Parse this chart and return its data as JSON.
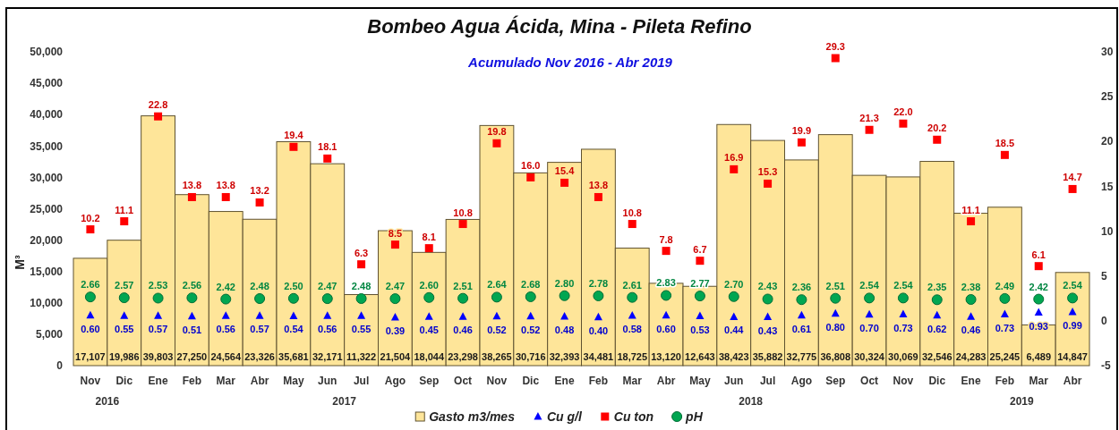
{
  "chart_data": {
    "type": "bar",
    "title": "Bombeo Agua Ácida, Mina - Pileta Refino",
    "subtitle": "Acumulado Nov 2016 - Abr 2019",
    "ylabel": "M³",
    "categories": [
      "Nov",
      "Dic",
      "Ene",
      "Feb",
      "Mar",
      "Abr",
      "May",
      "Jun",
      "Jul",
      "Ago",
      "Sep",
      "Oct",
      "Nov",
      "Dic",
      "Ene",
      "Feb",
      "Mar",
      "Abr",
      "May",
      "Jun",
      "Jul",
      "Ago",
      "Sep",
      "Oct",
      "Nov",
      "Dic",
      "Ene",
      "Feb",
      "Mar",
      "Abr"
    ],
    "series": [
      {
        "name": "Gasto m3/mes",
        "type": "bar",
        "color": "#fee599",
        "values": [
          17107,
          19986,
          39803,
          27250,
          24564,
          23326,
          35681,
          32171,
          11322,
          21504,
          18044,
          23298,
          38265,
          30716,
          32393,
          34481,
          18725,
          13120,
          12643,
          38423,
          35882,
          32775,
          36808,
          30324,
          30069,
          32546,
          24283,
          25245,
          6489,
          14847
        ],
        "value_labels": [
          "17,107",
          "19,986",
          "39,803",
          "27,250",
          "24,564",
          "23,326",
          "35,681",
          "32,171",
          "11,322",
          "21,504",
          "18,044",
          "23,298",
          "38,265",
          "30,716",
          "32,393",
          "34,481",
          "18,725",
          "13,120",
          "12,643",
          "38,423",
          "35,882",
          "32,775",
          "36,808",
          "30,324",
          "30,069",
          "32,546",
          "24,283",
          "25,245",
          "6,489",
          "14,847"
        ]
      },
      {
        "name": "Cu g/l",
        "type": "scatter",
        "axis": "y2",
        "marker": "triangle",
        "color": "#0000ff",
        "values": [
          0.6,
          0.55,
          0.57,
          0.51,
          0.56,
          0.57,
          0.54,
          0.56,
          0.55,
          0.39,
          0.45,
          0.46,
          0.52,
          0.52,
          0.48,
          0.4,
          0.58,
          0.6,
          0.53,
          0.44,
          0.43,
          0.61,
          0.8,
          0.7,
          0.73,
          0.62,
          0.46,
          0.73,
          0.93,
          0.99
        ],
        "value_labels": [
          "0.60",
          "0.55",
          "0.57",
          "0.51",
          "0.56",
          "0.57",
          "0.54",
          "0.56",
          "0.55",
          "0.39",
          "0.45",
          "0.46",
          "0.52",
          "0.52",
          "0.48",
          "0.40",
          "0.58",
          "0.60",
          "0.53",
          "0.44",
          "0.43",
          "0.61",
          "0.80",
          "0.70",
          "0.73",
          "0.62",
          "0.46",
          "0.73",
          "0.93",
          "0.99"
        ]
      },
      {
        "name": "Cu ton",
        "type": "scatter",
        "axis": "y2",
        "marker": "square",
        "color": "#ff0000",
        "values": [
          10.2,
          11.1,
          22.8,
          13.8,
          13.8,
          13.2,
          19.4,
          18.1,
          6.3,
          8.5,
          8.1,
          10.8,
          19.8,
          16.0,
          15.4,
          13.8,
          10.8,
          7.8,
          6.7,
          16.9,
          15.3,
          19.9,
          29.3,
          21.3,
          22.0,
          20.2,
          11.1,
          18.5,
          6.1,
          14.7
        ],
        "value_labels": [
          "10.2",
          "11.1",
          "22.8",
          "13.8",
          "13.8",
          "13.2",
          "19.4",
          "18.1",
          "6.3",
          "8.5",
          "8.1",
          "10.8",
          "19.8",
          "16.0",
          "15.4",
          "13.8",
          "10.8",
          "7.8",
          "6.7",
          "16.9",
          "15.3",
          "19.9",
          "29.3",
          "21.3",
          "22.0",
          "20.2",
          "11.1",
          "18.5",
          "6.1",
          "14.7"
        ]
      },
      {
        "name": "pH",
        "type": "scatter",
        "axis": "y2",
        "marker": "circle",
        "color": "#00a651",
        "values": [
          2.66,
          2.57,
          2.53,
          2.56,
          2.42,
          2.48,
          2.5,
          2.47,
          2.48,
          2.47,
          2.6,
          2.51,
          2.64,
          2.68,
          2.8,
          2.78,
          2.61,
          2.83,
          2.77,
          2.7,
          2.43,
          2.36,
          2.51,
          2.54,
          2.54,
          2.35,
          2.38,
          2.49,
          2.42,
          2.54
        ],
        "value_labels": [
          "2.66",
          "2.57",
          "2.53",
          "2.56",
          "2.42",
          "2.48",
          "2.50",
          "2.47",
          "2.48",
          "2.47",
          "2.60",
          "2.51",
          "2.64",
          "2.68",
          "2.80",
          "2.78",
          "2.61",
          "2.83",
          "2.77",
          "2.70",
          "2.43",
          "2.36",
          "2.51",
          "2.54",
          "2.54",
          "2.35",
          "2.38",
          "2.49",
          "2.42",
          "2.54"
        ]
      }
    ],
    "ylim": [
      0,
      50000
    ],
    "yticks": [
      0,
      {
        "value": 5000,
        "label": "5,000"
      },
      {
        "value": 10000,
        "label": "10,000"
      },
      {
        "value": 15000,
        "label": "15,000"
      },
      {
        "value": 20000,
        "label": "20,000"
      },
      {
        "value": 25000,
        "label": "25,000"
      },
      {
        "value": 30000,
        "label": "30,000"
      },
      {
        "value": 35000,
        "label": "35,000"
      },
      {
        "value": 40000,
        "label": "40,000"
      },
      {
        "value": 45000,
        "label": "45,000"
      },
      {
        "value": 50000,
        "label": "50,000"
      }
    ],
    "y2lim": [
      -5,
      30
    ],
    "y2ticks": [
      -5,
      0,
      5,
      10,
      15,
      20,
      25,
      30
    ],
    "legend": "bottom",
    "annotations": [
      "2016",
      "2017",
      "2018",
      "2019"
    ]
  }
}
